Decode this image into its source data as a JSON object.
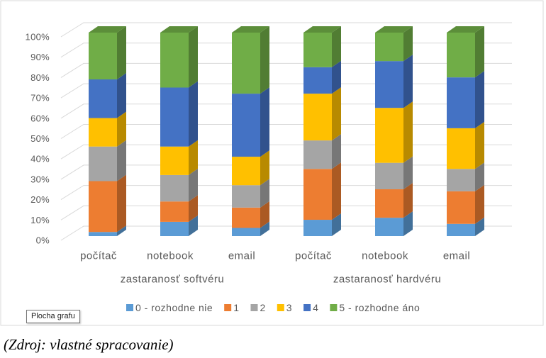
{
  "chart_data": {
    "type": "bar",
    "stacked": true,
    "percent_stacked": true,
    "three_d": true,
    "category_groups": [
      {
        "label": "zastaranosť softvéru",
        "categories": [
          "počítač",
          "notebook",
          "email"
        ]
      },
      {
        "label": "zastaranosť hardvéru",
        "categories": [
          "počítač",
          "notebook",
          "email"
        ]
      }
    ],
    "series": [
      {
        "name": "0 - rozhodne nie",
        "color": "#5B9BD5",
        "values": [
          2,
          7,
          4,
          8,
          9,
          6
        ]
      },
      {
        "name": "1",
        "color": "#ED7D31",
        "values": [
          25,
          10,
          10,
          25,
          14,
          16
        ]
      },
      {
        "name": "2",
        "color": "#A5A5A5",
        "values": [
          17,
          13,
          11,
          14,
          13,
          11
        ]
      },
      {
        "name": "3",
        "color": "#FFC000",
        "values": [
          14,
          14,
          14,
          23,
          27,
          20
        ]
      },
      {
        "name": "4",
        "color": "#4472C4",
        "values": [
          19,
          29,
          31,
          13,
          23,
          25
        ]
      },
      {
        "name": "5 - rozhodne áno",
        "color": "#70AD47",
        "values": [
          23,
          27,
          30,
          17,
          14,
          22
        ]
      }
    ],
    "ylim": [
      0,
      100
    ],
    "y_tick_labels": [
      "0%",
      "10%",
      "20%",
      "30%",
      "40%",
      "50%",
      "60%",
      "70%",
      "80%",
      "90%",
      "100%"
    ],
    "grid": true,
    "legend": "bottom"
  },
  "tooltip": {
    "label": "Plocha grafu"
  },
  "caption": "(Zdroj: vlastné spracovanie)"
}
